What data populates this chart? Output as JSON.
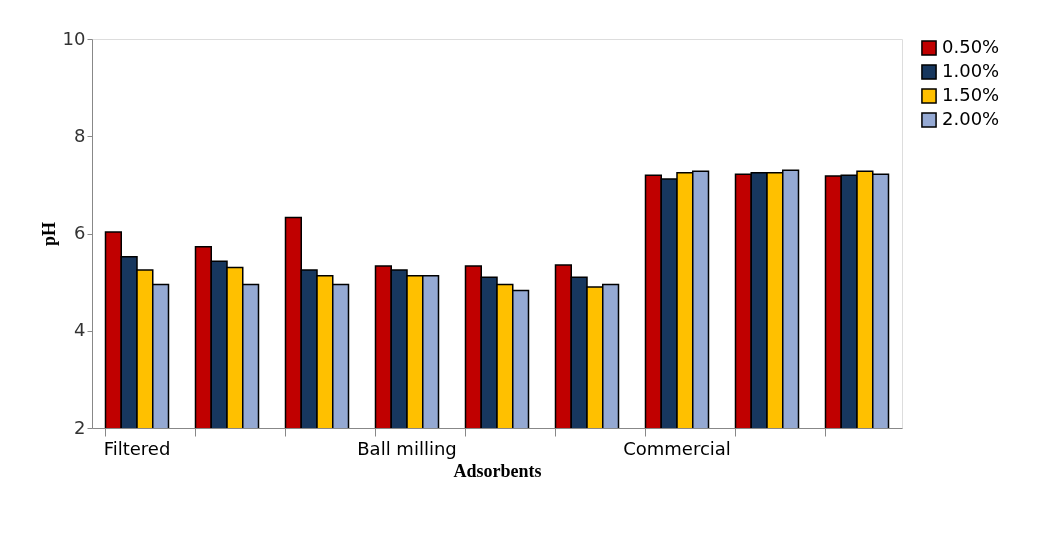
{
  "chart_data": {
    "type": "bar",
    "xlabel": "Adsorbents",
    "ylabel": "pH",
    "categories": [
      "Filtered",
      null,
      null,
      "Ball milling",
      null,
      null,
      "Commercial",
      null,
      null
    ],
    "series": [
      {
        "name": "0.50%",
        "color": "#c00000",
        "values": [
          6.03,
          5.73,
          6.33,
          5.33,
          5.33,
          5.35,
          7.2,
          7.22,
          7.18
        ]
      },
      {
        "name": "1.00%",
        "color": "#17375e",
        "values": [
          5.52,
          5.43,
          5.25,
          5.25,
          5.1,
          5.1,
          7.12,
          7.25,
          7.2
        ]
      },
      {
        "name": "1.50%",
        "color": "#ffc000",
        "values": [
          5.25,
          5.3,
          5.13,
          5.13,
          4.95,
          4.9,
          7.25,
          7.25,
          7.28
        ]
      },
      {
        "name": "2.00%",
        "color": "#95a9d3",
        "values": [
          4.95,
          4.95,
          4.95,
          5.13,
          4.83,
          4.95,
          7.28,
          7.3,
          7.22
        ]
      }
    ],
    "ylim": [
      2,
      10
    ],
    "yticks": [
      2,
      4,
      6,
      8,
      10
    ],
    "grid": false,
    "legend": "right"
  }
}
